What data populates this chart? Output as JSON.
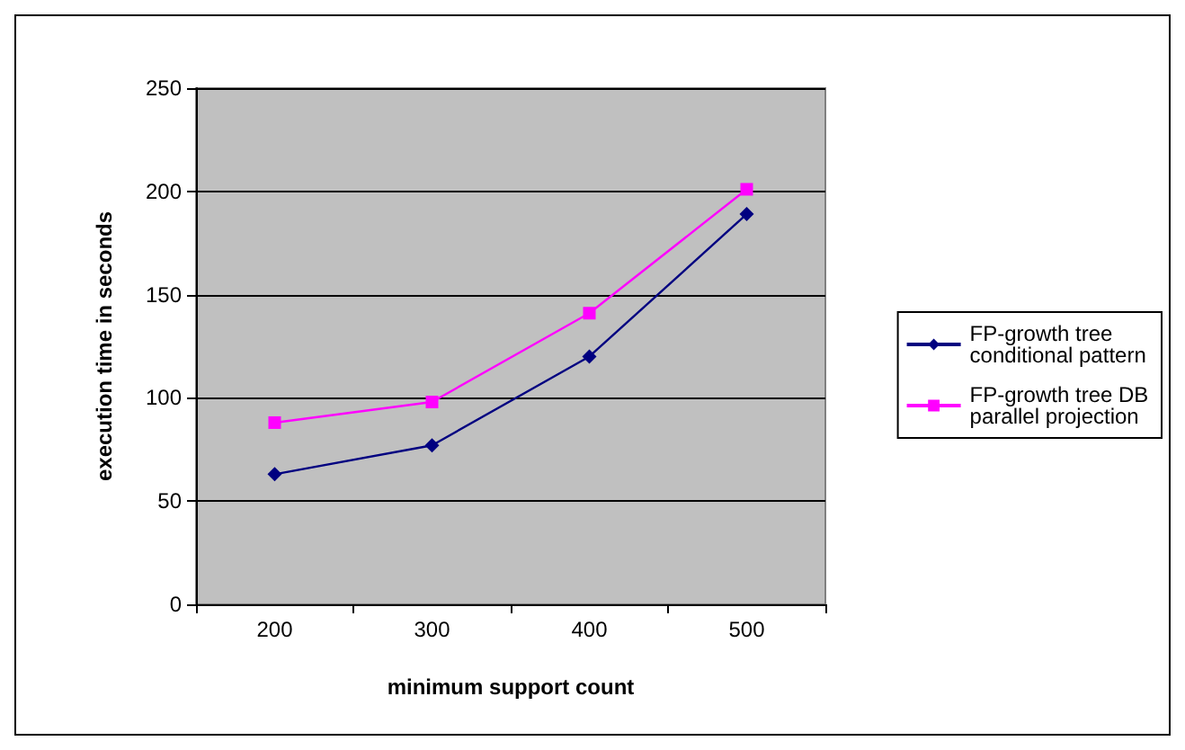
{
  "chart_data": {
    "type": "line",
    "xlabel": "minimum support count",
    "ylabel": "execution time in seconds",
    "categories": [
      "200",
      "300",
      "400",
      "500"
    ],
    "series": [
      {
        "name": "FP-growth tree conditional pattern",
        "color": "#000080",
        "marker": "diamond",
        "values": [
          63,
          77,
          120,
          189
        ]
      },
      {
        "name": "FP-growth tree DB parallel projection",
        "color": "#ff00ff",
        "marker": "square",
        "values": [
          88,
          98,
          141,
          201
        ]
      }
    ],
    "ylim": [
      0,
      250
    ],
    "yticks": [
      0,
      50,
      100,
      150,
      200,
      250
    ],
    "grid": "y",
    "legend": "right"
  }
}
